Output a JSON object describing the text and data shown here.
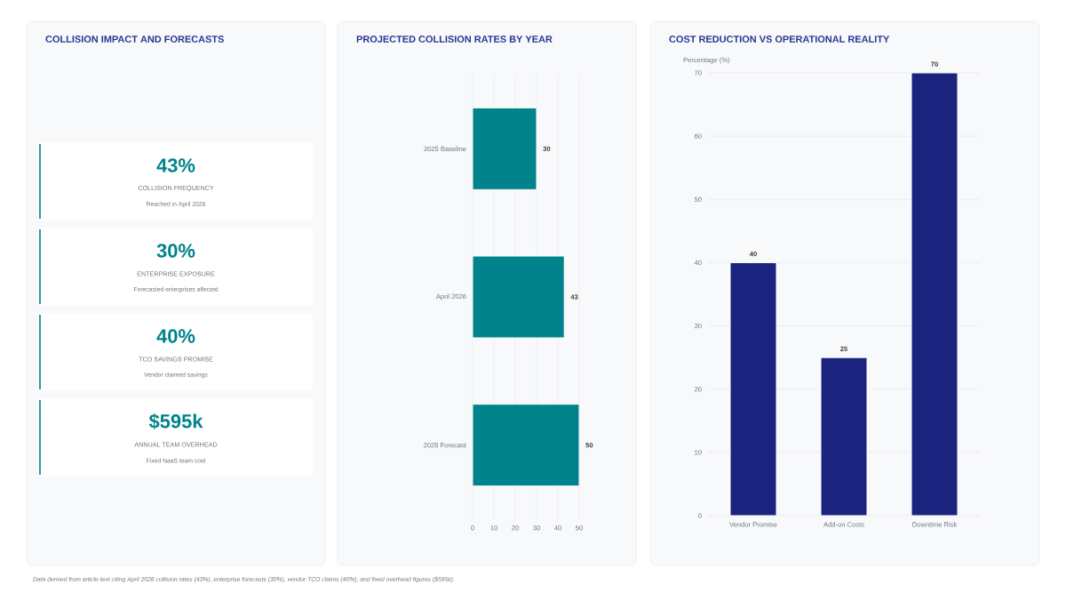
{
  "chart_data": [
    {
      "type": "other",
      "title": "COLLISION IMPACT AND FORECASTS",
      "annotations": [
        "43%",
        "COLLISION FREQUENCY",
        "Reached in April 2026",
        "30%",
        "ENTERPRISE EXPOSURE",
        "Forecasted enterprises affected",
        "40%",
        "TCO SAVINGS PROMISE",
        "Vendor claimed savings",
        "$595k",
        "ANNUAL TEAM OVERHEAD",
        "Fixed NaaS team cost",
        "Data derived from article text citing April 2026 collision rates (43%), enterprise forecasts (30%), vendor TCO claims (40%), and fixed overhead figures ($595k)."
      ]
    },
    {
      "type": "bar",
      "orientation": "horizontal",
      "title": "PROJECTED COLLISION RATES BY YEAR",
      "categories": [
        "2025 Baseline",
        "April 2026",
        "2028 Forecast"
      ],
      "values": [
        30,
        43,
        50
      ],
      "color": "#00838a",
      "xlim": [
        0,
        50
      ],
      "xticks": [
        0,
        10,
        20,
        30,
        40,
        50
      ],
      "grid": "x",
      "data_labels": true
    },
    {
      "type": "bar",
      "title": "COST REDUCTION VS OPERATIONAL REALITY",
      "ylabel": "Percentage (%)",
      "categories": [
        "Vendor Promise",
        "Add-on Costs",
        "Downtime Risk"
      ],
      "values": [
        40,
        25,
        70
      ],
      "color": "#1a237e",
      "ylim": [
        0,
        70
      ],
      "yticks": [
        0,
        10,
        20,
        30,
        40,
        50,
        60,
        70
      ],
      "grid": "y",
      "data_labels": true
    }
  ]
}
